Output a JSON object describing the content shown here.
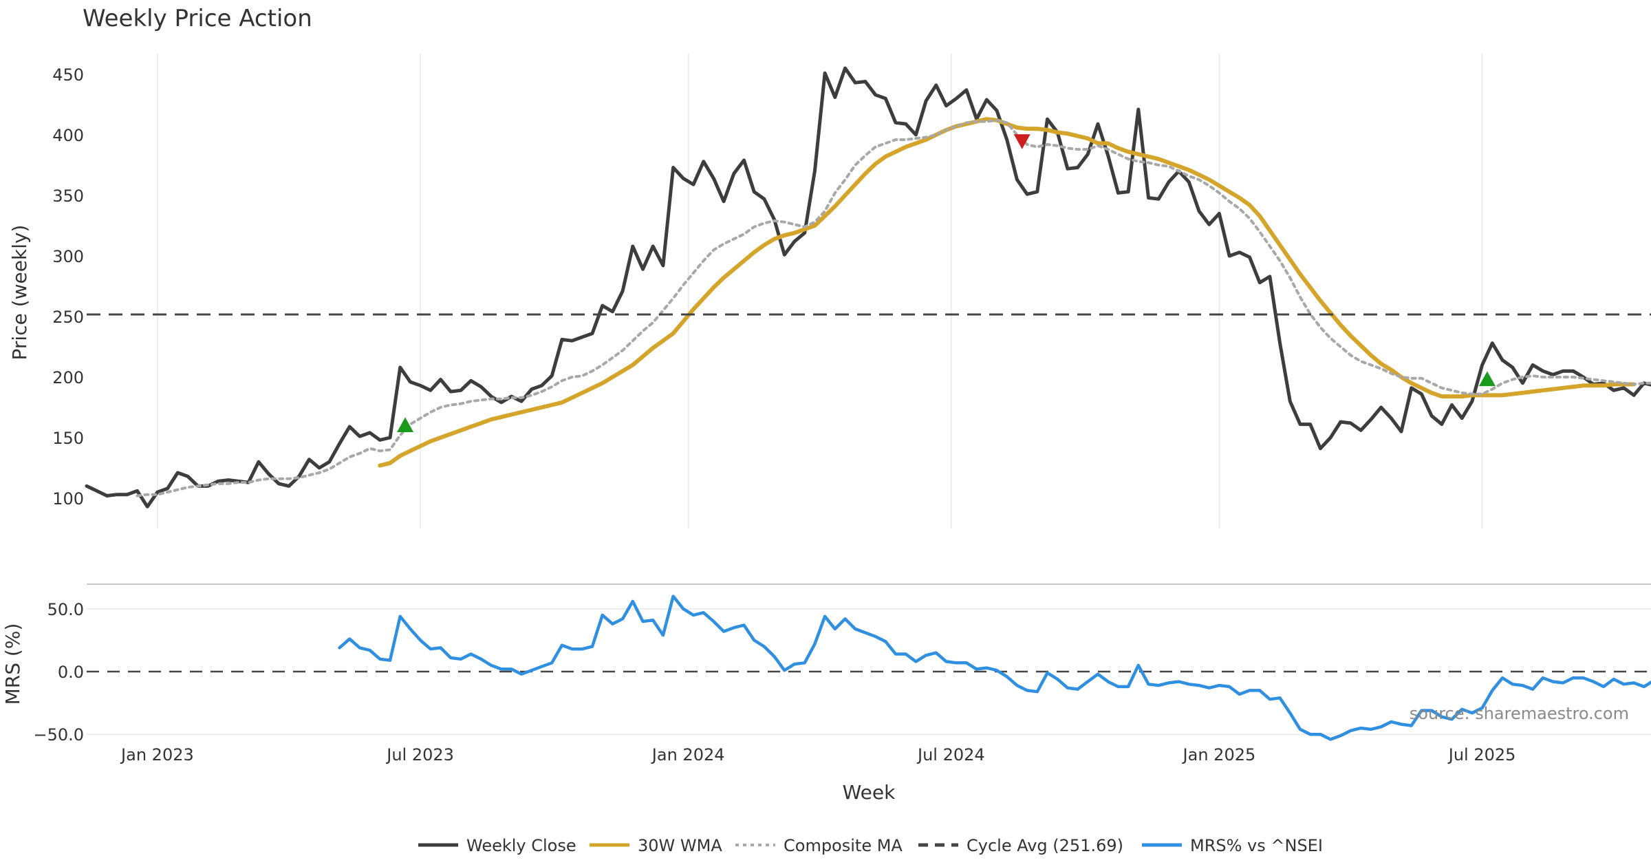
{
  "chart_data": {
    "type": "line",
    "title": "Weekly Price Action",
    "xlabel": "Week",
    "x_ticks": [
      "Jan 2023",
      "Jul 2023",
      "Jan 2024",
      "Jul 2024",
      "Jan 2025",
      "Jul 2025"
    ],
    "x_tick_weeks": [
      7,
      33,
      59.5,
      85.5,
      112,
      138
    ],
    "weeks": 157,
    "price_panel": {
      "ylabel": "Price (weekly)",
      "ylim": [
        75,
        467
      ],
      "y_ticks": [
        100,
        150,
        200,
        250,
        300,
        350,
        400,
        450
      ],
      "series": [
        {
          "name": "Weekly Close",
          "color": "#3d3d3d",
          "style": "solid",
          "values": [
            110,
            106,
            102,
            103,
            103,
            106,
            93,
            105,
            108,
            121,
            118,
            110,
            110,
            114,
            115,
            114,
            113,
            130,
            120,
            112,
            110,
            118,
            132,
            125,
            130,
            145,
            159,
            151,
            154,
            148,
            150,
            208,
            196,
            193,
            189,
            198,
            188,
            189,
            197,
            192,
            184,
            179,
            184,
            180,
            190,
            193,
            201,
            231,
            230,
            233,
            236,
            259,
            254,
            271,
            308,
            289,
            308,
            292,
            373,
            364,
            359,
            378,
            364,
            345,
            368,
            379,
            353,
            347,
            330,
            301,
            312,
            319,
            370,
            451,
            431,
            455,
            443,
            444,
            433,
            430,
            410,
            409,
            400,
            428,
            441,
            424,
            430,
            437,
            413,
            429,
            420,
            396,
            363,
            351,
            353,
            413,
            402,
            372,
            373,
            384,
            409,
            383,
            352,
            353,
            421,
            348,
            347,
            361,
            370,
            361,
            337,
            326,
            335,
            300,
            303,
            299,
            278,
            283,
            228,
            180,
            161,
            161,
            141,
            150,
            163,
            162,
            156,
            165,
            175,
            166,
            155,
            191,
            186,
            168,
            161,
            177,
            166,
            180,
            210,
            228,
            214,
            208,
            195,
            210,
            205,
            202,
            205,
            205,
            200,
            194,
            195,
            189,
            191,
            185,
            195,
            193,
            187
          ]
        },
        {
          "name": "30W WMA",
          "color": "#d4a52a",
          "style": "solid",
          "start": 29,
          "values": [
            127,
            129,
            135,
            139,
            143,
            147,
            150,
            153,
            156,
            159,
            162,
            165,
            167,
            169,
            171,
            173,
            175,
            177,
            179,
            183,
            187,
            191,
            195,
            200,
            205,
            210,
            217,
            224,
            230,
            236,
            246,
            256,
            265,
            274,
            282,
            289,
            296,
            303,
            309,
            314,
            317,
            319,
            322,
            325,
            333,
            341,
            350,
            359,
            368,
            376,
            382,
            386,
            390,
            393,
            396,
            400,
            404,
            407,
            409,
            411,
            413,
            412,
            409,
            406,
            405,
            405,
            404,
            402,
            401,
            399,
            397,
            393,
            393,
            389,
            386,
            384,
            382,
            380,
            377,
            374,
            371,
            367,
            363,
            358,
            353,
            348,
            342,
            333,
            321,
            309,
            297,
            285,
            274,
            263,
            253,
            243,
            234,
            226,
            218,
            211,
            206,
            200,
            195,
            191,
            187,
            184,
            184,
            184,
            185,
            185,
            185,
            185,
            186,
            187,
            188,
            189,
            190,
            191,
            192,
            193,
            193,
            193,
            194,
            194,
            194
          ]
        },
        {
          "name": "Composite MA",
          "color": "#a8a8a8",
          "style": "dotted",
          "values": [
            null,
            null,
            null,
            null,
            null,
            102,
            103,
            103,
            105,
            107,
            109,
            110,
            111,
            112,
            112,
            113,
            113,
            115,
            116,
            116,
            116,
            117,
            119,
            121,
            124,
            129,
            134,
            137,
            141,
            139,
            140,
            152,
            161,
            166,
            171,
            175,
            177,
            178,
            180,
            181,
            182,
            182,
            183,
            183,
            185,
            188,
            192,
            197,
            200,
            201,
            205,
            210,
            216,
            222,
            230,
            238,
            245,
            255,
            265,
            276,
            286,
            296,
            305,
            310,
            314,
            318,
            324,
            327,
            329,
            328,
            326,
            324,
            328,
            337,
            352,
            363,
            375,
            383,
            390,
            393,
            396,
            396,
            397,
            398,
            400,
            404,
            407,
            410,
            411,
            411,
            412,
            410,
            400,
            392,
            390,
            392,
            391,
            389,
            388,
            388,
            391,
            388,
            384,
            380,
            378,
            377,
            375,
            374,
            370,
            366,
            363,
            358,
            352,
            345,
            339,
            331,
            320,
            308,
            296,
            282,
            266,
            252,
            241,
            232,
            225,
            218,
            213,
            210,
            207,
            203,
            200,
            199,
            199,
            195,
            191,
            189,
            187,
            186,
            186,
            190,
            195,
            198,
            200,
            201,
            200,
            200,
            200,
            200,
            199,
            198,
            197,
            196,
            195,
            194,
            195,
            195,
            194
          ]
        },
        {
          "name": "Cycle Avg (251.69)",
          "color": "#444444",
          "style": "dashed",
          "constant": 251.69
        }
      ],
      "markers": [
        {
          "type": "buy",
          "week": 31.5,
          "value": 160,
          "color": "#1a9a1a"
        },
        {
          "type": "sell",
          "week": 92.5,
          "value": 395,
          "color": "#cc1f1f"
        },
        {
          "type": "buy",
          "week": 138.5,
          "value": 198,
          "color": "#1a9a1a"
        }
      ]
    },
    "mrs_panel": {
      "ylabel": "MRS (%)",
      "ylim": [
        -57,
        68
      ],
      "y_ticks": [
        50.0,
        0.0,
        -50.0
      ],
      "y_tick_labels": [
        "50.0",
        "0.0",
        "−50.0"
      ],
      "zero_line": true,
      "series": [
        {
          "name": "MRS% vs ^NSEI",
          "color": "#2f8fe0",
          "style": "solid",
          "start": 25,
          "values": [
            19,
            26,
            19,
            17,
            10,
            9,
            44,
            34,
            25,
            18,
            19,
            11,
            10,
            14,
            10,
            5,
            2,
            2,
            -2,
            1,
            4,
            7,
            21,
            18,
            18,
            20,
            45,
            38,
            42,
            56,
            40,
            41,
            29,
            60,
            50,
            45,
            47,
            40,
            32,
            35,
            37,
            25,
            20,
            12,
            1,
            6,
            7,
            22,
            44,
            34,
            42,
            34,
            31,
            28,
            24,
            14,
            14,
            8,
            13,
            15,
            8,
            7,
            7,
            2,
            3,
            1,
            -4,
            -11,
            -15,
            -16,
            -1,
            -6,
            -13,
            -14,
            -8,
            -2,
            -8,
            -12,
            -12,
            5,
            -10,
            -11,
            -9,
            -8,
            -10,
            -11,
            -13,
            -11,
            -12,
            -18,
            -15,
            -15,
            -22,
            -21,
            -33,
            -46,
            -50,
            -50,
            -54,
            -51,
            -47,
            -45,
            -46,
            -44,
            -40,
            -42,
            -43,
            -31,
            -31,
            -36,
            -38,
            -30,
            -33,
            -29,
            -15,
            -5,
            -10,
            -11,
            -14,
            -5,
            -8,
            -9,
            -5,
            -5,
            -8,
            -12,
            -6,
            -10,
            -9,
            -12,
            -7,
            -7,
            -8
          ]
        }
      ]
    },
    "legend_position": "bottom-center",
    "grid": true
  },
  "watermark": "source: sharemaestro.com"
}
